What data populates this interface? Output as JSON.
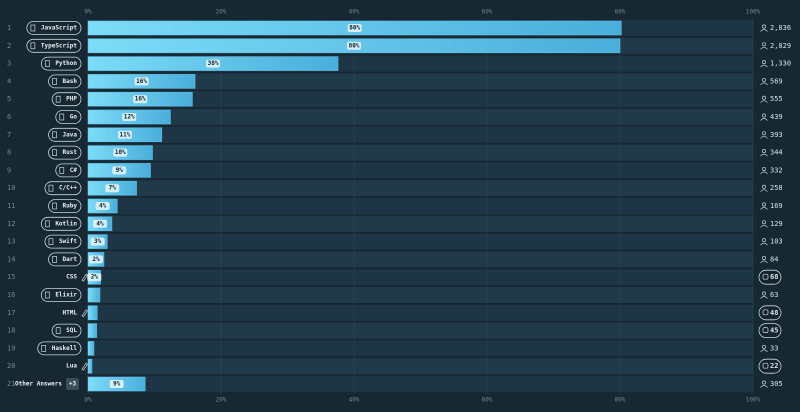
{
  "chart_data": {
    "type": "bar",
    "categories": [
      "JavaScript",
      "TypeScript",
      "Python",
      "Bash",
      "PHP",
      "Go",
      "Java",
      "Rust",
      "C#",
      "C/C++",
      "Ruby",
      "Kotlin",
      "Swift",
      "Dart",
      "CSS",
      "Elixir",
      "HTML",
      "SQL",
      "Haskell",
      "Lua",
      "Other Answers"
    ],
    "values": [
      80.2,
      80,
      37.6,
      16.1,
      15.7,
      12.4,
      11.1,
      9.7,
      9.4,
      7.3,
      4.4,
      3.6,
      2.9,
      2.4,
      1.9,
      1.8,
      1.4,
      1.3,
      0.9,
      0.6,
      8.6
    ],
    "value_labels": [
      "80%",
      "80%",
      "38%",
      "16%",
      "16%",
      "12%",
      "11%",
      "10%",
      "9%",
      "7%",
      "4%",
      "4%",
      "3%",
      "2%",
      "2%",
      null,
      null,
      null,
      null,
      null,
      "9%"
    ],
    "counts": [
      "2,836",
      "2,829",
      "1,330",
      "569",
      "555",
      "439",
      "393",
      "344",
      "332",
      "258",
      "169",
      "129",
      "103",
      "84",
      "68",
      "63",
      "48",
      "45",
      "33",
      "22",
      "305"
    ],
    "ranks": [
      "1",
      "2",
      "3",
      "4",
      "5",
      "6",
      "7",
      "8",
      "9",
      "10",
      "11",
      "12",
      "13",
      "14",
      "15",
      "16",
      "17",
      "18",
      "19",
      "20",
      "21"
    ],
    "boxed_label": [
      true,
      true,
      true,
      true,
      true,
      true,
      true,
      true,
      true,
      true,
      true,
      true,
      true,
      true,
      false,
      true,
      false,
      true,
      true,
      false,
      false
    ],
    "boxed_count": [
      false,
      false,
      false,
      false,
      false,
      false,
      false,
      false,
      false,
      false,
      false,
      false,
      false,
      false,
      true,
      false,
      true,
      true,
      false,
      true,
      false
    ],
    "other_badge": "+3",
    "color": "#62c8ef",
    "xlim": [
      0,
      100
    ],
    "xticks": [
      {
        "value": 0,
        "label": "0%"
      },
      {
        "value": 20,
        "label": "20%"
      },
      {
        "value": 40,
        "label": "40%"
      },
      {
        "value": 60,
        "label": "60%"
      },
      {
        "value": 80,
        "label": "80%"
      },
      {
        "value": 100,
        "label": "100%"
      }
    ]
  }
}
